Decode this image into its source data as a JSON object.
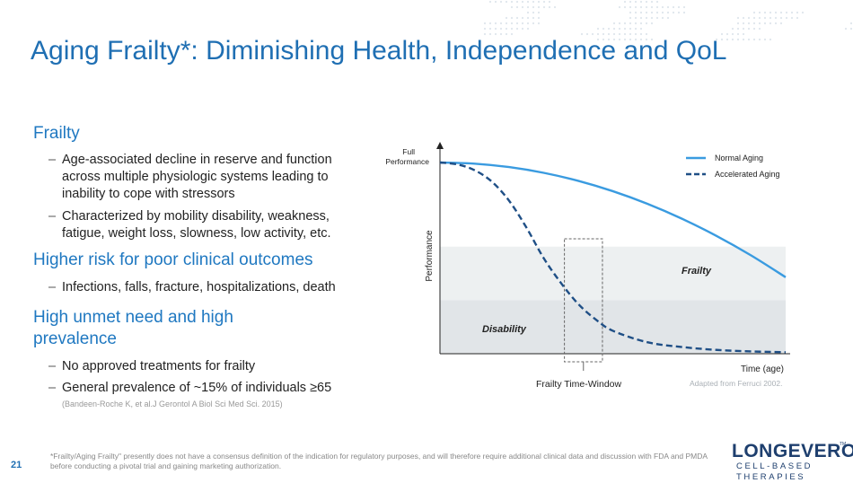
{
  "slide": {
    "title": "Aging Frailty*: Diminishing Health, Independence and QoL",
    "page_number": "21"
  },
  "left": {
    "sections": [
      {
        "heading": "Frailty",
        "bullets": [
          "Age-associated decline in reserve and function across multiple physiologic systems leading to inability to cope with stressors",
          "Characterized by mobility disability, weakness, fatigue, weight loss, slowness, low activity, etc."
        ]
      },
      {
        "heading": "Higher risk for poor clinical outcomes",
        "bullets": [
          "Infections, falls, fracture, hospitalizations, death"
        ]
      },
      {
        "heading": "High unmet need and high prevalence",
        "bullets": [
          "No approved treatments for frailty",
          "General prevalence of ~15% of individuals ≥65"
        ]
      }
    ],
    "reference": "(Bandeen-Roche K, et al.J Gerontol A Biol Sci Med Sci. 2015)"
  },
  "chart_data": {
    "type": "line",
    "xlabel": "Time (age)",
    "ylabel": "Performance",
    "y_top_label": "Full\nPerformance",
    "legend_position": "top-right",
    "series": [
      {
        "name": "Normal Aging",
        "style": "solid",
        "color": "#3a9be0",
        "x": [
          0,
          0.1,
          0.2,
          0.3,
          0.4,
          0.5,
          0.6,
          0.7,
          0.8,
          0.9,
          1.0
        ],
        "y": [
          1.0,
          0.994,
          0.976,
          0.946,
          0.904,
          0.85,
          0.784,
          0.706,
          0.616,
          0.514,
          0.4
        ]
      },
      {
        "name": "Accelerated Aging",
        "style": "dashed",
        "color": "#1f4f86",
        "x": [
          0,
          0.05,
          0.1,
          0.15,
          0.2,
          0.25,
          0.3,
          0.35,
          0.4,
          0.45,
          0.5,
          0.6,
          0.7,
          0.8,
          0.9,
          1.0
        ],
        "y": [
          1.0,
          0.99,
          0.96,
          0.9,
          0.8,
          0.66,
          0.5,
          0.37,
          0.26,
          0.18,
          0.12,
          0.06,
          0.035,
          0.02,
          0.012,
          0.008
        ]
      }
    ],
    "bands": [
      {
        "label": "Frailty",
        "from": 0.28,
        "to": 0.56,
        "color": "#edf0f1"
      },
      {
        "label": "Disability",
        "from": 0.0,
        "to": 0.28,
        "color": "#e1e5e8"
      }
    ],
    "window": {
      "label": "Frailty Time-Window",
      "x_from": 0.36,
      "x_to": 0.47
    },
    "source_note": "Adapted from Ferruci 2002."
  },
  "footnote": "*Frailty/Aging Frailty\" presently does not have a consensus definition of the indication for regulatory purposes, and will therefore require additional clinical data and discussion with FDA and PMDA before conducting a pivotal trial and gaining marketing authorization.",
  "logo": {
    "name": "LONGEVERON",
    "tagline": "CELL-BASED THERAPIES",
    "mark": "TM"
  }
}
